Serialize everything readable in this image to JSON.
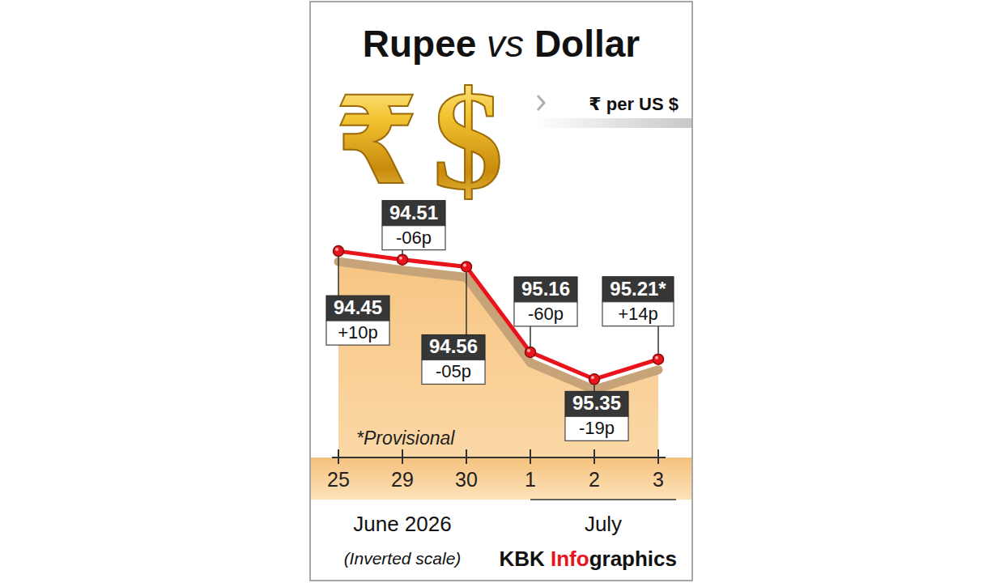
{
  "chart_data": {
    "type": "line",
    "title": "Rupee vs Dollar",
    "ylabel": "₹ per US $",
    "icons": [
      "₹",
      "$"
    ],
    "categories": [
      "25",
      "29",
      "30",
      "1",
      "2",
      "3"
    ],
    "groups": [
      {
        "label": "June 2026",
        "count": 3
      },
      {
        "label": "July",
        "count": 3
      }
    ],
    "values": [
      94.45,
      94.51,
      94.56,
      95.16,
      95.35,
      95.21
    ],
    "value_labels": [
      "94.45",
      "94.51",
      "94.56",
      "95.16",
      "95.35",
      "95.21*"
    ],
    "change_labels": [
      "+10p",
      "-06p",
      "-05p",
      "-60p",
      "-19p",
      "+14p"
    ],
    "ylim": [
      95.9,
      94.0
    ],
    "tick_labels": "x",
    "data_labels": true,
    "color": "#e8131b",
    "marker": "circle",
    "line_style": "solid",
    "note": "*Provisional",
    "scale_note": "(Inverted scale)",
    "credit": [
      "KBK",
      "Info",
      "graphics"
    ]
  }
}
